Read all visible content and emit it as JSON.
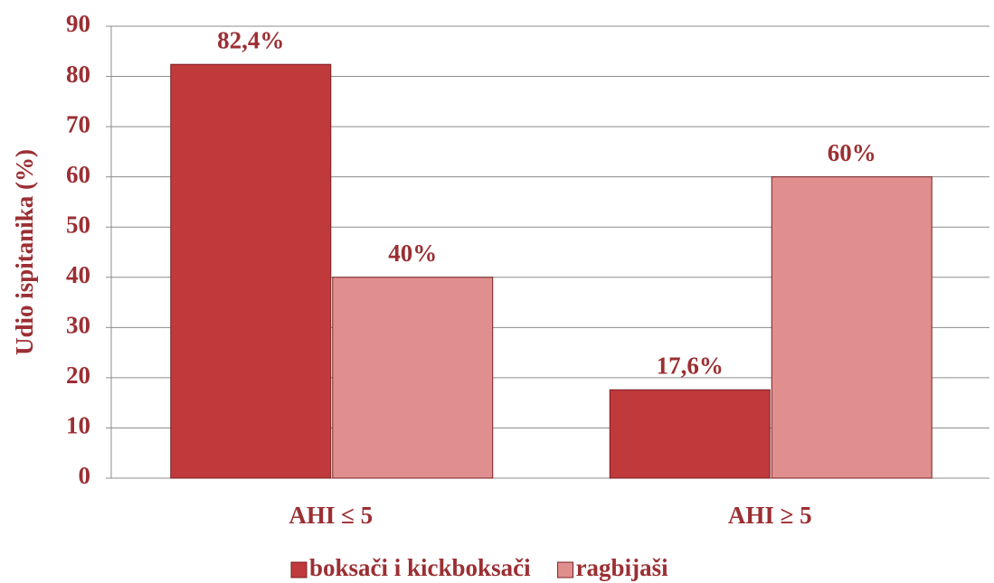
{
  "chart_data": {
    "type": "bar",
    "y_label": "Udio ispitanika (%)",
    "categories": [
      "AHI ≤ 5",
      "AHI ≥ 5"
    ],
    "series": [
      {
        "name": "boksači i kickboksači",
        "color": "#c0393b",
        "values": [
          82.4,
          17.6
        ],
        "value_labels": [
          "82,4%",
          "17,6%"
        ]
      },
      {
        "name": "ragbijaši",
        "color": "#df8f8d",
        "values": [
          40,
          60
        ],
        "value_labels": [
          "40%",
          "60%"
        ]
      }
    ],
    "ylim": [
      0,
      90
    ],
    "yticks": [
      0,
      10,
      20,
      30,
      40,
      50,
      60,
      70,
      80,
      90
    ],
    "grid": true,
    "legend": "bottom"
  }
}
